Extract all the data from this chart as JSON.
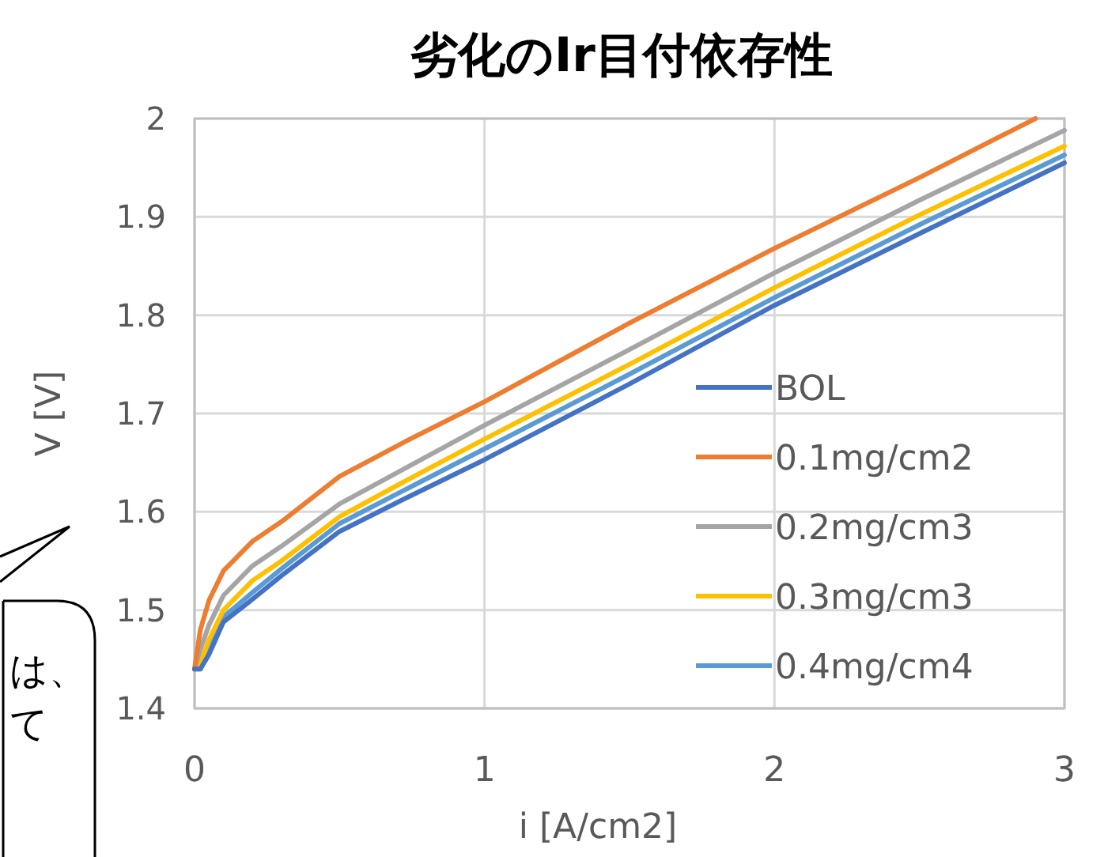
{
  "chart_data": {
    "type": "line",
    "title": "劣化のIr目付依存性",
    "xlabel": "i [A/cm2]",
    "ylabel": "V [V]",
    "x": [
      0,
      0.02,
      0.05,
      0.1,
      0.2,
      0.3,
      0.5,
      0.75,
      1,
      1.5,
      2,
      2.5,
      3
    ],
    "series": [
      {
        "name": "BOL",
        "color": "#4472c4",
        "values": [
          1.44,
          1.44,
          1.455,
          1.488,
          1.511,
          1.535,
          1.58,
          1.617,
          1.653,
          1.73,
          1.81,
          1.883,
          1.955
        ]
      },
      {
        "name": "0.1mg/cm2",
        "color": "#ed7d31",
        "x": [
          0,
          0.02,
          0.05,
          0.1,
          0.2,
          0.3,
          0.5,
          0.75,
          1,
          1.5,
          2,
          2.5,
          2.9
        ],
        "values": [
          1.44,
          1.48,
          1.51,
          1.54,
          1.57,
          1.59,
          1.636,
          1.675,
          1.712,
          1.792,
          1.868,
          1.94,
          2.0
        ]
      },
      {
        "name": "0.2mg/cm3",
        "color": "#a5a5a5",
        "values": [
          1.44,
          1.46,
          1.485,
          1.515,
          1.545,
          1.565,
          1.608,
          1.648,
          1.688,
          1.765,
          1.843,
          1.917,
          1.988
        ]
      },
      {
        "name": "0.3mg/cm3",
        "color": "#ffc000",
        "values": [
          1.44,
          1.445,
          1.47,
          1.5,
          1.53,
          1.55,
          1.595,
          1.635,
          1.674,
          1.75,
          1.828,
          1.902,
          1.972
        ]
      },
      {
        "name": "0.4mg/cm4",
        "color": "#5b9bd5",
        "values": [
          1.44,
          1.44,
          1.46,
          1.493,
          1.518,
          1.542,
          1.588,
          1.626,
          1.664,
          1.74,
          1.818,
          1.892,
          1.963
        ]
      }
    ],
    "xlim": [
      0,
      3
    ],
    "ylim": [
      1.4,
      2
    ],
    "xticks": [
      0,
      1,
      2,
      3
    ],
    "yticks": [
      1.4,
      1.5,
      1.6,
      1.7,
      1.8,
      1.9,
      2
    ],
    "grid": true,
    "legend": "right",
    "annotations": [
      "は、",
      "て"
    ]
  }
}
